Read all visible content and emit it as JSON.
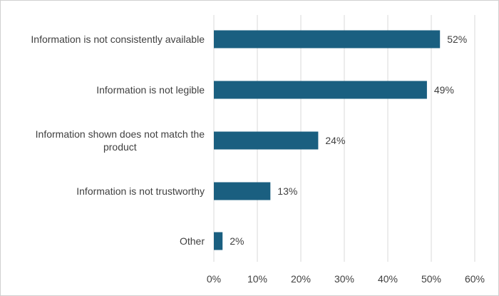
{
  "chart_data": {
    "type": "bar",
    "orientation": "horizontal",
    "categories": [
      [
        "Information is not consistently available"
      ],
      [
        "Information is not legible"
      ],
      [
        "Information shown does not match the",
        "product"
      ],
      [
        "Information is not trustworthy"
      ],
      [
        "Other"
      ]
    ],
    "values": [
      52,
      49,
      24,
      13,
      2
    ],
    "data_labels": [
      "52%",
      "49%",
      "24%",
      "13%",
      "2%"
    ],
    "xlim": [
      0,
      60
    ],
    "x_ticks": [
      0,
      10,
      20,
      30,
      40,
      50,
      60
    ],
    "x_tick_labels": [
      "0%",
      "10%",
      "20%",
      "30%",
      "40%",
      "50%",
      "60%"
    ],
    "title": "",
    "xlabel": "",
    "ylabel": "",
    "grid": "vertical",
    "legend": "none",
    "bar_color": "#1a5f80",
    "grid_color": "#d9d9d9",
    "text_color": "#404040"
  }
}
